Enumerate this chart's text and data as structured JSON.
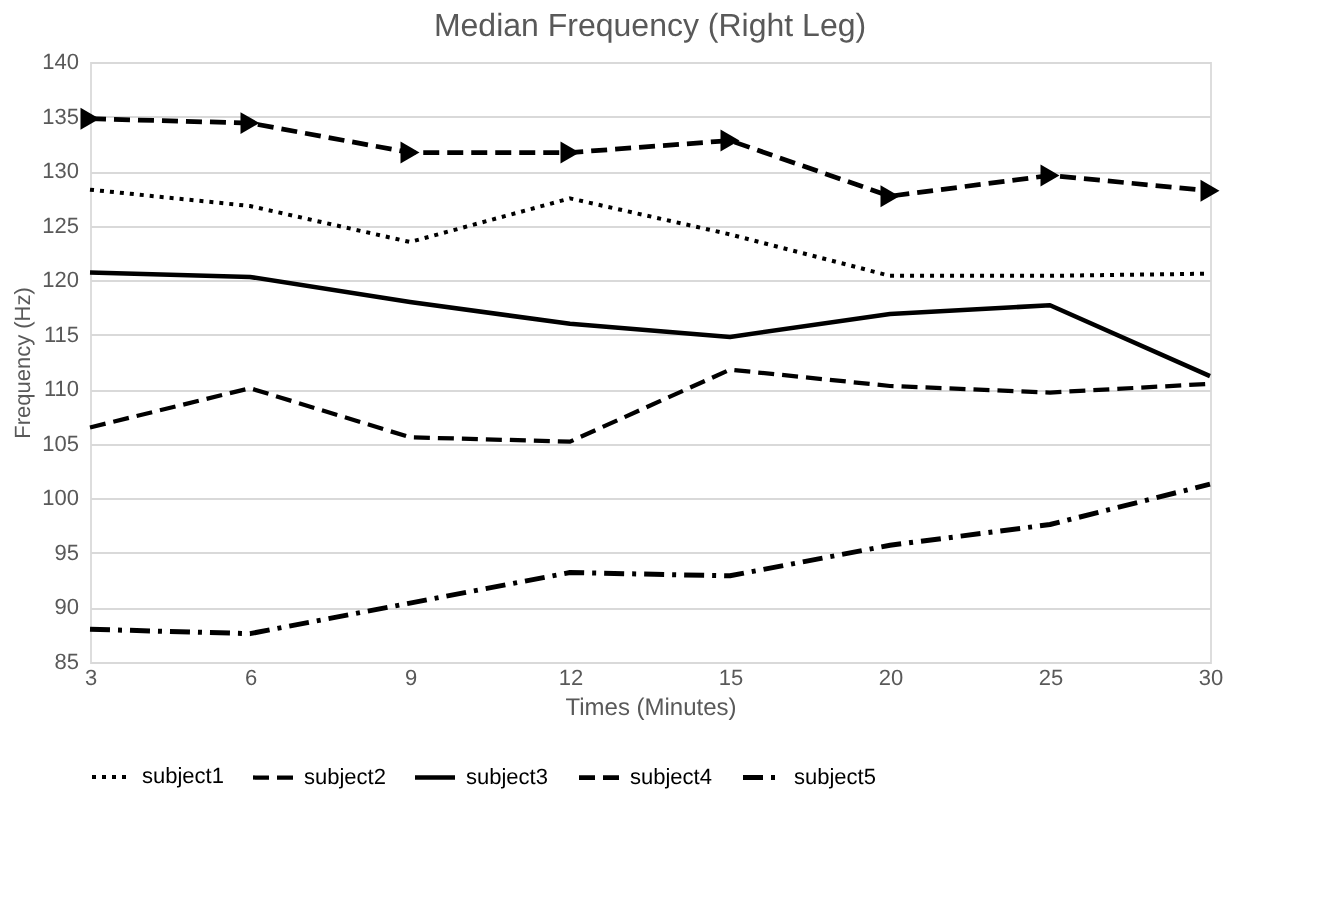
{
  "chart_data": {
    "type": "line",
    "title": "Median Frequency (Right Leg)",
    "xlabel": "Times (Minutes)",
    "ylabel": "Frequency (Hz)",
    "categories": [
      "3",
      "6",
      "9",
      "12",
      "15",
      "20",
      "25",
      "30"
    ],
    "ylim": [
      85,
      140
    ],
    "yticks": [
      85,
      90,
      95,
      100,
      105,
      110,
      115,
      120,
      125,
      130,
      135,
      140
    ],
    "grid": "y",
    "legend": "bottom",
    "series": [
      {
        "name": "subject1",
        "color": "#000000",
        "line_style": "dotted",
        "values": [
          128.3,
          126.8,
          123.5,
          127.5,
          124.2,
          120.4,
          120.4,
          120.6
        ]
      },
      {
        "name": "subject2",
        "color": "#000000",
        "line_style": "dashed",
        "values": [
          106.5,
          110.1,
          105.6,
          105.2,
          111.8,
          110.3,
          109.7,
          110.5
        ]
      },
      {
        "name": "subject3",
        "color": "#000000",
        "line_style": "solid",
        "values": [
          120.7,
          120.3,
          118.0,
          116.0,
          114.8,
          116.9,
          117.7,
          111.2
        ]
      },
      {
        "name": "subject4",
        "color": "#000000",
        "line_style": "dashed",
        "marker": "triangle",
        "values": [
          134.8,
          134.4,
          131.7,
          131.7,
          132.8,
          127.7,
          129.6,
          128.2
        ]
      },
      {
        "name": "subject5",
        "color": "#000000",
        "line_style": "dashdot",
        "values": [
          88.0,
          87.6,
          90.4,
          93.2,
          92.9,
          95.7,
          97.6,
          101.3
        ]
      }
    ]
  }
}
